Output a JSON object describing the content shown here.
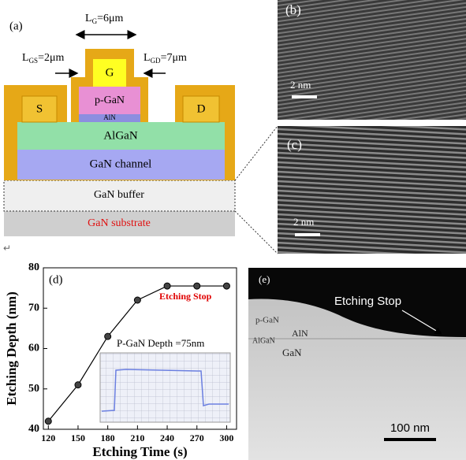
{
  "panel_a": {
    "label": "(a)",
    "lg": {
      "prefix": "L",
      "sub": "G",
      "rest": "=6μm"
    },
    "lgs": {
      "prefix": "L",
      "sub": "GS",
      "rest": "=2μm"
    },
    "lgd": {
      "prefix": "L",
      "sub": "GD",
      "rest": "=7μm"
    },
    "gate": "G",
    "source": "S",
    "drain": "D",
    "pgan": "p-GaN",
    "aln": "AlN",
    "algan": "AlGaN",
    "channel": "GaN channel",
    "buffer": "GaN buffer",
    "substrate": "GaN substrate",
    "return_mark": "↵"
  },
  "panel_b": {
    "label": "(b)",
    "scale": "2 nm"
  },
  "panel_c": {
    "label": "(c)",
    "scale": "2 nm"
  },
  "chart_data": {
    "type": "line",
    "label": "(d)",
    "x": [
      120,
      150,
      180,
      210,
      240,
      270,
      300
    ],
    "values": [
      42,
      51,
      63,
      72,
      75.5,
      75.5,
      75.5
    ],
    "color": "#000000",
    "xlim": [
      115,
      310
    ],
    "xticks": [
      120,
      150,
      180,
      210,
      240,
      270,
      300
    ],
    "ylim": [
      40,
      80
    ],
    "yticks": [
      40,
      50,
      60,
      70,
      80
    ],
    "x_label": "Etching Time (s)",
    "y_label": "Etching Depth (nm)",
    "annotations": [
      "Etching Stop",
      "P-GaN Depth =75nm"
    ]
  },
  "panel_e": {
    "label": "(e)",
    "etching_stop": "Etching Stop",
    "pgan": "p-GaN",
    "aln": "AlN",
    "algan": "AlGaN",
    "gan": "GaN",
    "scale": "100 nm"
  }
}
